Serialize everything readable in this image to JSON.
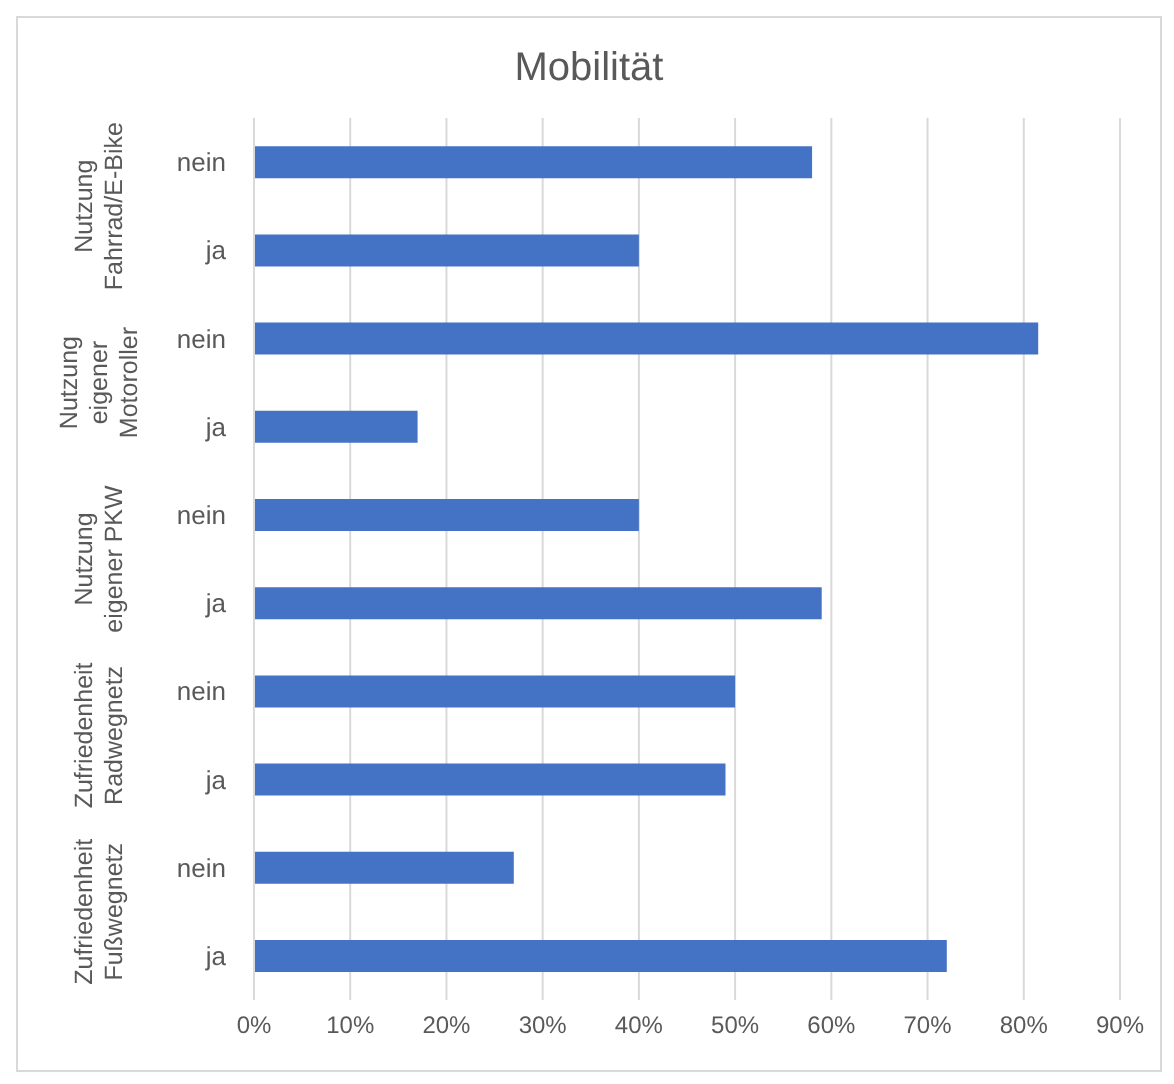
{
  "chart_data": {
    "type": "bar",
    "orientation": "horizontal",
    "title": "Mobilität",
    "categories": [
      "nein",
      "ja",
      "nein",
      "ja",
      "nein",
      "ja",
      "nein",
      "ja",
      "nein",
      "ja"
    ],
    "values": [
      58,
      40,
      81.5,
      17,
      40,
      59,
      50,
      49,
      27,
      72
    ],
    "color": "#4472c4",
    "annotations": [
      "Nutzung Fahrrad/E-Bike",
      "Nutzung eigener Motoroller",
      "Nutzung eigener PKW",
      "Zufriedenheit Radwegnetz",
      "Zufriedenheit Fußwegnetz"
    ],
    "xlim": [
      0,
      90
    ],
    "xticks": [
      {
        "value": 0,
        "label": "0%"
      },
      {
        "value": 10,
        "label": "10%"
      },
      {
        "value": 20,
        "label": "20%"
      },
      {
        "value": 30,
        "label": "30%"
      },
      {
        "value": 40,
        "label": "40%"
      },
      {
        "value": 50,
        "label": "50%"
      },
      {
        "value": 60,
        "label": "60%"
      },
      {
        "value": 70,
        "label": "70%"
      },
      {
        "value": 80,
        "label": "80%"
      },
      {
        "value": 90,
        "label": "90%"
      }
    ],
    "grid": "x",
    "legend": false
  }
}
